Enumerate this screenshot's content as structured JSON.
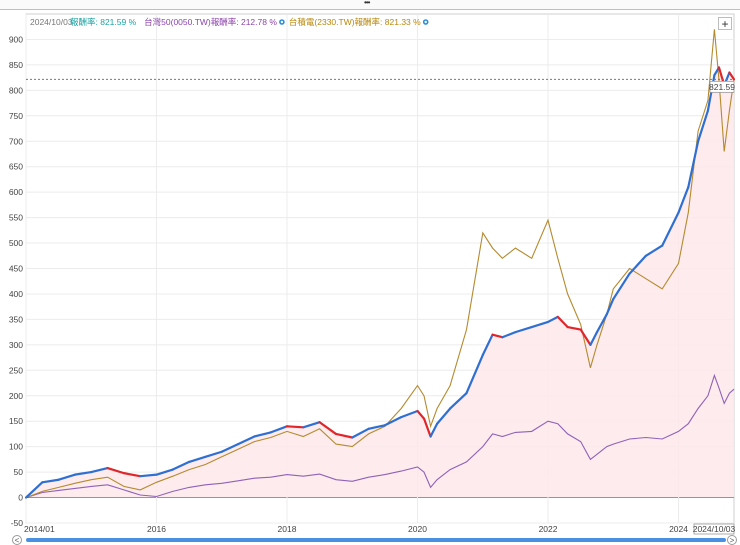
{
  "chart_data": {
    "type": "line",
    "header_date": "2024/10/03",
    "legend": [
      {
        "label": "報酬率: 821.59 %",
        "color": "#1aa3a3",
        "has_icon": false
      },
      {
        "label": "台灣50(0050.TW)報酬率: 212.78 %",
        "color": "#8e44ad",
        "has_icon": true
      },
      {
        "label": "台積電(2330.TW)報酬率: 821.33 %",
        "color": "#b8860b",
        "has_icon": true
      }
    ],
    "ylim": [
      -50,
      950
    ],
    "yticks": [
      "-50",
      "0",
      "50",
      "100",
      "150",
      "200",
      "250",
      "300",
      "350",
      "400",
      "450",
      "500",
      "550",
      "600",
      "650",
      "700",
      "750",
      "800",
      "850",
      "900"
    ],
    "xlim": [
      2014.0,
      2024.85
    ],
    "xticks": [
      {
        "label": "2014/01",
        "x": 2014.0
      },
      {
        "label": "2016",
        "x": 2016.0
      },
      {
        "label": "2018",
        "x": 2018.0
      },
      {
        "label": "2020",
        "x": 2020.0
      },
      {
        "label": "2022",
        "x": 2022.0
      },
      {
        "label": "2024",
        "x": 2024.0
      }
    ],
    "crosshair": {
      "y_label": "821.59",
      "y_value": 821.59,
      "x_label": "2024/10/03"
    },
    "series": [
      {
        "name": "報酬率",
        "style": "area-redblue",
        "points": [
          [
            2014.0,
            0
          ],
          [
            2014.25,
            30
          ],
          [
            2014.5,
            35
          ],
          [
            2014.75,
            45
          ],
          [
            2015.0,
            50
          ],
          [
            2015.25,
            58
          ],
          [
            2015.5,
            48
          ],
          [
            2015.75,
            42
          ],
          [
            2016.0,
            45
          ],
          [
            2016.25,
            55
          ],
          [
            2016.5,
            70
          ],
          [
            2016.75,
            80
          ],
          [
            2017.0,
            90
          ],
          [
            2017.25,
            105
          ],
          [
            2017.5,
            120
          ],
          [
            2017.75,
            128
          ],
          [
            2018.0,
            140
          ],
          [
            2018.25,
            138
          ],
          [
            2018.5,
            148
          ],
          [
            2018.75,
            125
          ],
          [
            2019.0,
            118
          ],
          [
            2019.25,
            135
          ],
          [
            2019.5,
            142
          ],
          [
            2019.75,
            158
          ],
          [
            2020.0,
            170
          ],
          [
            2020.1,
            155
          ],
          [
            2020.2,
            120
          ],
          [
            2020.3,
            145
          ],
          [
            2020.5,
            175
          ],
          [
            2020.75,
            205
          ],
          [
            2021.0,
            280
          ],
          [
            2021.15,
            320
          ],
          [
            2021.3,
            315
          ],
          [
            2021.5,
            325
          ],
          [
            2021.75,
            335
          ],
          [
            2022.0,
            345
          ],
          [
            2022.15,
            355
          ],
          [
            2022.3,
            335
          ],
          [
            2022.5,
            330
          ],
          [
            2022.65,
            300
          ],
          [
            2022.75,
            325
          ],
          [
            2022.9,
            360
          ],
          [
            2023.0,
            390
          ],
          [
            2023.25,
            440
          ],
          [
            2023.5,
            475
          ],
          [
            2023.75,
            495
          ],
          [
            2024.0,
            560
          ],
          [
            2024.15,
            610
          ],
          [
            2024.3,
            700
          ],
          [
            2024.45,
            760
          ],
          [
            2024.55,
            830
          ],
          [
            2024.62,
            845
          ],
          [
            2024.7,
            810
          ],
          [
            2024.78,
            835
          ],
          [
            2024.85,
            821.59
          ]
        ]
      },
      {
        "name": "台灣50(0050.TW)報酬率",
        "style": "line",
        "color": "#8e62b8",
        "points": [
          [
            2014.0,
            0
          ],
          [
            2014.25,
            10
          ],
          [
            2014.5,
            14
          ],
          [
            2014.75,
            18
          ],
          [
            2015.0,
            22
          ],
          [
            2015.25,
            25
          ],
          [
            2015.5,
            15
          ],
          [
            2015.75,
            5
          ],
          [
            2016.0,
            2
          ],
          [
            2016.25,
            12
          ],
          [
            2016.5,
            20
          ],
          [
            2016.75,
            25
          ],
          [
            2017.0,
            28
          ],
          [
            2017.25,
            33
          ],
          [
            2017.5,
            38
          ],
          [
            2017.75,
            40
          ],
          [
            2018.0,
            45
          ],
          [
            2018.25,
            42
          ],
          [
            2018.5,
            46
          ],
          [
            2018.75,
            35
          ],
          [
            2019.0,
            32
          ],
          [
            2019.25,
            40
          ],
          [
            2019.5,
            45
          ],
          [
            2019.75,
            52
          ],
          [
            2020.0,
            60
          ],
          [
            2020.1,
            50
          ],
          [
            2020.2,
            20
          ],
          [
            2020.3,
            35
          ],
          [
            2020.5,
            55
          ],
          [
            2020.75,
            70
          ],
          [
            2021.0,
            100
          ],
          [
            2021.15,
            125
          ],
          [
            2021.3,
            120
          ],
          [
            2021.5,
            128
          ],
          [
            2021.75,
            130
          ],
          [
            2022.0,
            150
          ],
          [
            2022.15,
            145
          ],
          [
            2022.3,
            125
          ],
          [
            2022.5,
            110
          ],
          [
            2022.65,
            75
          ],
          [
            2022.75,
            85
          ],
          [
            2022.9,
            100
          ],
          [
            2023.0,
            105
          ],
          [
            2023.25,
            115
          ],
          [
            2023.5,
            118
          ],
          [
            2023.75,
            115
          ],
          [
            2024.0,
            130
          ],
          [
            2024.15,
            145
          ],
          [
            2024.3,
            175
          ],
          [
            2024.45,
            200
          ],
          [
            2024.55,
            240
          ],
          [
            2024.62,
            215
          ],
          [
            2024.7,
            185
          ],
          [
            2024.78,
            205
          ],
          [
            2024.85,
            212.78
          ]
        ]
      },
      {
        "name": "台積電(2330.TW)報酬率",
        "style": "line",
        "color": "#b58a2e",
        "points": [
          [
            2014.0,
            0
          ],
          [
            2014.25,
            12
          ],
          [
            2014.5,
            20
          ],
          [
            2014.75,
            28
          ],
          [
            2015.0,
            35
          ],
          [
            2015.25,
            40
          ],
          [
            2015.5,
            22
          ],
          [
            2015.75,
            15
          ],
          [
            2016.0,
            30
          ],
          [
            2016.25,
            42
          ],
          [
            2016.5,
            55
          ],
          [
            2016.75,
            65
          ],
          [
            2017.0,
            80
          ],
          [
            2017.25,
            95
          ],
          [
            2017.5,
            110
          ],
          [
            2017.75,
            118
          ],
          [
            2018.0,
            130
          ],
          [
            2018.25,
            120
          ],
          [
            2018.5,
            135
          ],
          [
            2018.75,
            105
          ],
          [
            2019.0,
            100
          ],
          [
            2019.25,
            125
          ],
          [
            2019.5,
            140
          ],
          [
            2019.75,
            175
          ],
          [
            2020.0,
            220
          ],
          [
            2020.1,
            200
          ],
          [
            2020.2,
            140
          ],
          [
            2020.3,
            175
          ],
          [
            2020.5,
            220
          ],
          [
            2020.75,
            330
          ],
          [
            2021.0,
            520
          ],
          [
            2021.15,
            490
          ],
          [
            2021.3,
            470
          ],
          [
            2021.5,
            490
          ],
          [
            2021.75,
            470
          ],
          [
            2022.0,
            545
          ],
          [
            2022.15,
            470
          ],
          [
            2022.3,
            400
          ],
          [
            2022.5,
            340
          ],
          [
            2022.65,
            255
          ],
          [
            2022.75,
            300
          ],
          [
            2022.9,
            360
          ],
          [
            2023.0,
            410
          ],
          [
            2023.25,
            450
          ],
          [
            2023.5,
            430
          ],
          [
            2023.75,
            410
          ],
          [
            2024.0,
            460
          ],
          [
            2024.15,
            560
          ],
          [
            2024.3,
            720
          ],
          [
            2024.45,
            780
          ],
          [
            2024.55,
            920
          ],
          [
            2024.62,
            820
          ],
          [
            2024.7,
            680
          ],
          [
            2024.78,
            760
          ],
          [
            2024.85,
            821.33
          ]
        ]
      }
    ]
  },
  "ui": {
    "zoom_button": "+",
    "scroll_left": "<",
    "scroll_right": ">",
    "grip": "•••"
  }
}
